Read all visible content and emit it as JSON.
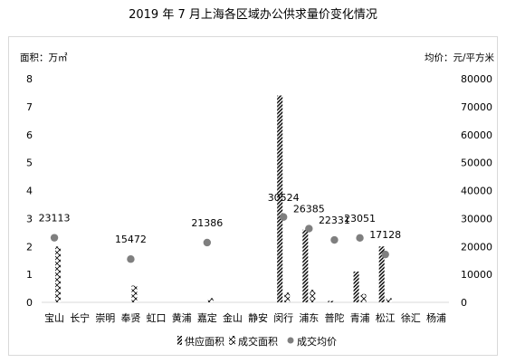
{
  "title": "2019 年 7 月上海各区域办公供求量价变化情况",
  "chart_data": {
    "type": "bar",
    "title": "2019 年 7 月上海各区域办公供求量价变化情况",
    "y_left_label": "面积：万㎡",
    "y_right_label": "均价：元/平方米",
    "y_left_ticks": [
      "0",
      "1",
      "2",
      "3",
      "4",
      "5",
      "6",
      "7",
      "8"
    ],
    "y_right_ticks": [
      "0",
      "10000",
      "20000",
      "30000",
      "40000",
      "50000",
      "60000",
      "70000",
      "80000"
    ],
    "y_left_range": [
      0,
      8
    ],
    "y_right_range": [
      0,
      80000
    ],
    "categories": [
      "宝山",
      "长宁",
      "崇明",
      "奉贤",
      "虹口",
      "黄浦",
      "嘉定",
      "金山",
      "静安",
      "闵行",
      "浦东",
      "普陀",
      "青浦",
      "松江",
      "徐汇",
      "杨浦"
    ],
    "series": [
      {
        "name": "供应面积",
        "kind": "bar",
        "axis": "left",
        "pattern": "diagonal",
        "values": [
          0,
          0,
          0,
          0,
          0,
          0,
          0,
          0,
          0,
          7.4,
          2.6,
          0.05,
          1.1,
          2.0,
          0,
          0
        ]
      },
      {
        "name": "成交面积",
        "kind": "bar",
        "axis": "left",
        "pattern": "zigzag",
        "values": [
          2.0,
          0,
          0,
          0.6,
          0,
          0,
          0.15,
          0,
          0,
          0.35,
          0.45,
          0,
          0.3,
          0.15,
          0,
          0
        ]
      },
      {
        "name": "成交均价",
        "kind": "scatter",
        "axis": "right",
        "color": "#7f7f7f",
        "values": [
          23113,
          null,
          null,
          15472,
          null,
          null,
          21386,
          null,
          null,
          30524,
          26385,
          22331,
          23051,
          17128,
          null,
          null
        ],
        "labels": [
          "23113",
          "",
          "",
          "15472",
          "",
          "",
          "21386",
          "",
          "",
          "30524",
          "26385",
          "22331",
          "23051",
          "17128",
          "",
          ""
        ]
      }
    ],
    "legend_position": "bottom",
    "grid": false
  }
}
